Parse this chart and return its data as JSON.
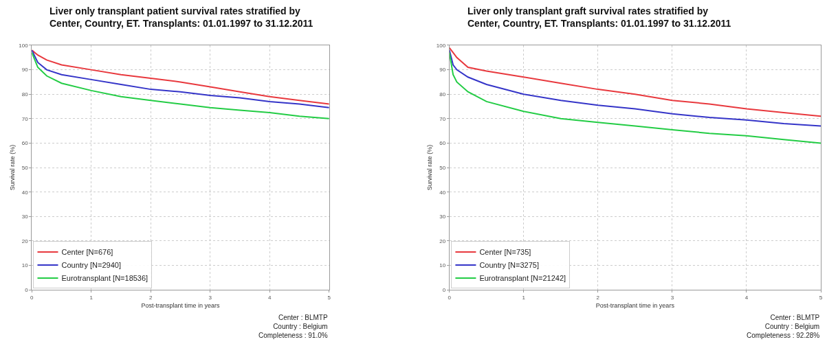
{
  "chart_data": [
    {
      "type": "line",
      "title": "Liver only transplant patient survival rates stratified by\nCenter, Country, ET. Transplants: 01.01.1997 to 31.12.2011",
      "xlabel": "Post-transplant time in years",
      "ylabel": "Survival rate (%)",
      "x": [
        0,
        0.1,
        0.25,
        0.5,
        1,
        1.5,
        2,
        2.5,
        3,
        3.5,
        4,
        4.5,
        5
      ],
      "series": [
        {
          "name": "Center [N=676]",
          "color": "#e8383d",
          "values": [
            98,
            96,
            94,
            92,
            90,
            88,
            86.5,
            85,
            83,
            81,
            79,
            77.5,
            76
          ]
        },
        {
          "name": "Country [N=2940]",
          "color": "#3434c8",
          "values": [
            98,
            93,
            90,
            88,
            86,
            84,
            82,
            81,
            79.5,
            78.5,
            77,
            76,
            74.5
          ]
        },
        {
          "name": "Eurotransplant [N=18536]",
          "color": "#22cc44",
          "values": [
            97,
            91,
            87.5,
            84.5,
            81.5,
            79,
            77.5,
            76,
            74.5,
            73.5,
            72.5,
            71,
            70
          ]
        }
      ],
      "xlim": [
        0,
        5
      ],
      "xticks": [
        0,
        1,
        2,
        3,
        4,
        5
      ],
      "ylim": [
        0,
        100
      ],
      "yticks": [
        0,
        10,
        20,
        30,
        40,
        50,
        60,
        70,
        80,
        90,
        100
      ],
      "grid": true,
      "legend": "bottom left",
      "line_style": "solid",
      "annotations": [
        "Center : BLMTP\nCountry : Belgium\nCompleteness : 91.0%"
      ]
    },
    {
      "type": "line",
      "title": "Liver only transplant graft survival rates stratified by\nCenter, Country, ET. Transplants: 01.01.1997 to 31.12.2011",
      "xlabel": "Post-transplant time in years",
      "ylabel": "Survival rate (%)",
      "x": [
        0,
        0.05,
        0.1,
        0.25,
        0.5,
        1,
        1.5,
        2,
        2.5,
        3,
        3.5,
        4,
        4.5,
        5
      ],
      "series": [
        {
          "name": "Center [N=735]",
          "color": "#e8383d",
          "values": [
            99,
            97,
            95,
            91,
            89.5,
            87,
            84.5,
            82,
            80,
            77.5,
            76,
            74,
            72.5,
            71
          ]
        },
        {
          "name": "Country [N=3275]",
          "color": "#3434c8",
          "values": [
            98,
            92,
            90,
            87,
            84,
            80,
            77.5,
            75.5,
            74,
            72,
            70.5,
            69.5,
            68,
            67
          ]
        },
        {
          "name": "Eurotransplant [N=21242]",
          "color": "#22cc44",
          "values": [
            97,
            88,
            85,
            81,
            77,
            73,
            70,
            68.5,
            67,
            65.5,
            64,
            63,
            61.5,
            60
          ]
        }
      ],
      "xlim": [
        0,
        5
      ],
      "xticks": [
        0,
        1,
        2,
        3,
        4,
        5
      ],
      "ylim": [
        0,
        100
      ],
      "yticks": [
        0,
        10,
        20,
        30,
        40,
        50,
        60,
        70,
        80,
        90,
        100
      ],
      "grid": true,
      "legend": "bottom left",
      "line_style": "solid",
      "annotations": [
        "Center : BLMTP\nCountry : Belgium\nCompleteness : 92.28%"
      ]
    }
  ]
}
